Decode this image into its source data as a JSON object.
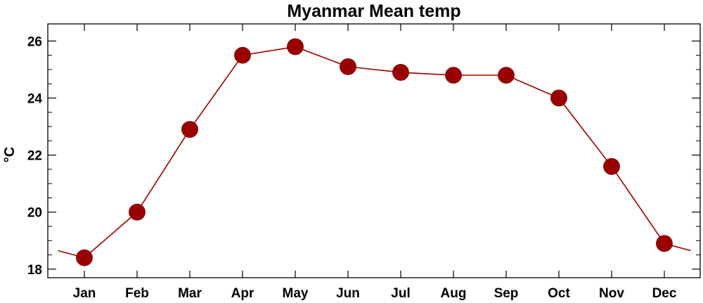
{
  "chart_data": {
    "type": "line",
    "title": "Myanmar Mean temp",
    "ylabel": "°C",
    "xlabel": "",
    "categories": [
      "Jan",
      "Feb",
      "Mar",
      "Apr",
      "May",
      "Jun",
      "Jul",
      "Aug",
      "Sep",
      "Oct",
      "Nov",
      "Dec"
    ],
    "series": [
      {
        "values": [
          18.4,
          20.0,
          22.9,
          25.5,
          25.8,
          25.1,
          24.9,
          24.8,
          24.8,
          24.0,
          21.6,
          18.9
        ]
      }
    ],
    "ylim": [
      17.7,
      26.6
    ],
    "yticks": [
      18,
      20,
      22,
      24,
      26
    ],
    "grid": false,
    "line_color": "#9b0000",
    "marker_color": "#9b0000"
  }
}
